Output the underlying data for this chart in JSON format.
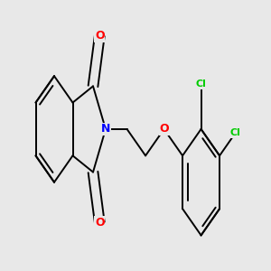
{
  "background_color": "#e8e8e8",
  "bond_color": "#000000",
  "bond_width": 1.4,
  "atom_colors": {
    "N": "#0000ff",
    "O": "#ff0000",
    "Cl": "#00cc00",
    "C": "#000000"
  },
  "font_size_N": 9,
  "font_size_O": 9,
  "font_size_Cl": 8
}
